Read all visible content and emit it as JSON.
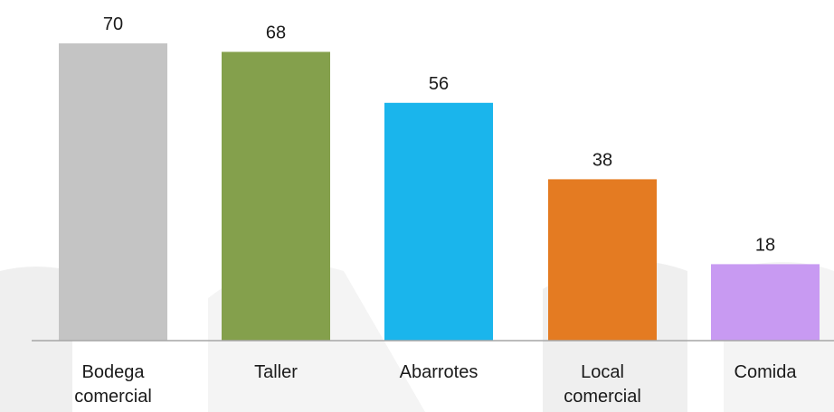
{
  "chart_data": {
    "type": "bar",
    "categories": [
      [
        "Bodega",
        "comercial"
      ],
      [
        "Taller"
      ],
      [
        "Abarrotes"
      ],
      [
        "Local",
        "comercial"
      ],
      [
        "Comida"
      ]
    ],
    "values": [
      70,
      68,
      56,
      38,
      18
    ],
    "colors": [
      "#c4c4c4",
      "#84a04c",
      "#1ab5ec",
      "#e47b22",
      "#c89af2"
    ],
    "ylim": [
      0,
      75
    ],
    "title": "",
    "xlabel": "",
    "ylabel": "",
    "grid": false,
    "legend": "none",
    "data_labels": true
  },
  "watermark": {
    "colors": [
      "#e8e8e8",
      "#efefef"
    ]
  }
}
